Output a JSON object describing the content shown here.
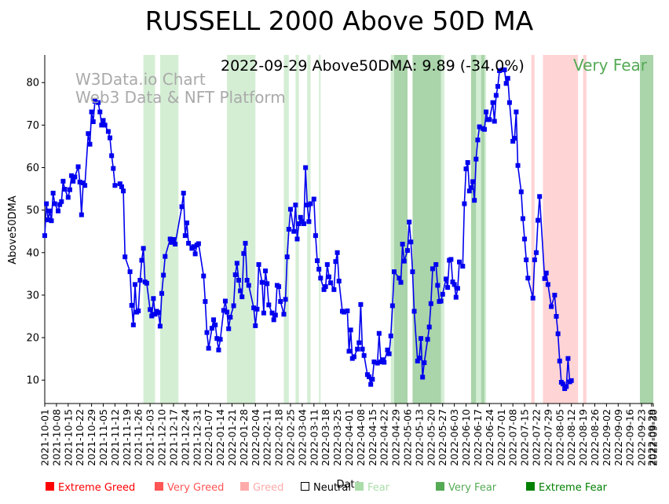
{
  "chart_data": {
    "type": "line",
    "title": "RUSSELL 2000 Above 50D MA",
    "annotation": "2022-09-29 Above50DMA: 9.89 (-34.0%)",
    "annotation_status": "Very Fear",
    "xlabel": "Date",
    "ylabel": "Above50DMA",
    "watermark": [
      "W3Data.io Chart",
      "Web3 Data & NFT Platform"
    ],
    "x_range": [
      "2021-10-01",
      "2022-09-30"
    ],
    "ylim": [
      4.5,
      86.5
    ],
    "yticks": [
      "10",
      "20",
      "30",
      "40",
      "50",
      "60",
      "70",
      "80"
    ],
    "xticks": [
      "2021-10-01",
      "2021-10-08",
      "2021-10-15",
      "2021-10-22",
      "2021-10-29",
      "2021-11-05",
      "2021-11-12",
      "2021-11-19",
      "2021-11-26",
      "2021-12-03",
      "2021-12-10",
      "2021-12-17",
      "2021-12-24",
      "2021-12-31",
      "2022-01-07",
      "2022-01-14",
      "2022-01-21",
      "2022-01-28",
      "2022-02-04",
      "2022-02-11",
      "2022-02-18",
      "2022-02-25",
      "2022-03-04",
      "2022-03-11",
      "2022-03-18",
      "2022-03-25",
      "2022-04-01",
      "2022-04-08",
      "2022-04-15",
      "2022-04-22",
      "2022-04-29",
      "2022-05-06",
      "2022-05-13",
      "2022-05-20",
      "2022-05-27",
      "2022-06-03",
      "2022-06-10",
      "2022-06-17",
      "2022-06-24",
      "2022-07-01",
      "2022-07-08",
      "2022-07-15",
      "2022-07-22",
      "2022-07-29",
      "2022-08-05",
      "2022-08-12",
      "2022-08-19",
      "2022-08-26",
      "2022-09-02",
      "2022-09-09",
      "2022-09-16",
      "2022-09-23",
      "2022-09-29",
      "2022-09-30"
    ],
    "line_color": "#0000ee",
    "legend": [
      {
        "label": "Extreme Greed",
        "color": "#ff0000"
      },
      {
        "label": "Very Greed",
        "color": "#ff5555"
      },
      {
        "label": "Greed",
        "color": "#ffaaaa"
      },
      {
        "label": "Neutral",
        "color": "#000000",
        "hollow": true
      },
      {
        "label": "Fear",
        "color": "#aaddaa"
      },
      {
        "label": "Very Fear",
        "color": "#55aa55"
      },
      {
        "label": "Extreme Fear",
        "color": "#008000"
      }
    ],
    "legend_position": "bottom",
    "bands": [
      {
        "start": "2021-11-29",
        "end": "2021-12-06",
        "zone": "Fear"
      },
      {
        "start": "2021-12-09",
        "end": "2021-12-20",
        "zone": "Fear"
      },
      {
        "start": "2022-01-18",
        "end": "2022-02-04",
        "zone": "Fear"
      },
      {
        "start": "2022-02-21",
        "end": "2022-02-24",
        "zone": "Fear"
      },
      {
        "start": "2022-02-28",
        "end": "2022-03-02",
        "zone": "Fear"
      },
      {
        "start": "2022-03-07",
        "end": "2022-03-09",
        "zone": "Fear"
      },
      {
        "start": "2022-03-14",
        "end": "2022-03-15",
        "zone": "Fear"
      },
      {
        "start": "2022-04-26",
        "end": "2022-04-28",
        "zone": "Fear"
      },
      {
        "start": "2022-04-28",
        "end": "2022-05-06",
        "zone": "Very Fear"
      },
      {
        "start": "2022-05-09",
        "end": "2022-05-26",
        "zone": "Very Fear"
      },
      {
        "start": "2022-05-26",
        "end": "2022-05-28",
        "zone": "Fear"
      },
      {
        "start": "2022-06-13",
        "end": "2022-06-16",
        "zone": "Very Fear"
      },
      {
        "start": "2022-06-16",
        "end": "2022-06-19",
        "zone": "Fear"
      },
      {
        "start": "2022-06-19",
        "end": "2022-06-21",
        "zone": "Very Fear"
      },
      {
        "start": "2022-06-21",
        "end": "2022-06-22",
        "zone": "Fear"
      },
      {
        "start": "2022-07-19",
        "end": "2022-07-21",
        "zone": "Greed"
      },
      {
        "start": "2022-07-26",
        "end": "2022-08-16",
        "zone": "Greed"
      },
      {
        "start": "2022-08-19",
        "end": "2022-08-21",
        "zone": "Greed"
      },
      {
        "start": "2022-09-22",
        "end": "2022-09-30",
        "zone": "Very Fear"
      }
    ],
    "points": [
      [
        "2021-10-01",
        44.0
      ],
      [
        "2021-10-02",
        51.5
      ],
      [
        "2021-10-03",
        47.7
      ],
      [
        "2021-10-04",
        49.8
      ],
      [
        "2021-10-05",
        47.5
      ],
      [
        "2021-10-06",
        54.0
      ],
      [
        "2021-10-07",
        51.5
      ],
      [
        "2021-10-09",
        49.8
      ],
      [
        "2021-10-10",
        51.3
      ],
      [
        "2021-10-11",
        52.0
      ],
      [
        "2021-10-12",
        56.8
      ],
      [
        "2021-10-13",
        54.9
      ],
      [
        "2021-10-15",
        53.0
      ],
      [
        "2021-10-16",
        54.8
      ],
      [
        "2021-10-17",
        58.1
      ],
      [
        "2021-10-18",
        56.8
      ],
      [
        "2021-10-19",
        57.8
      ],
      [
        "2021-10-21",
        60.2
      ],
      [
        "2021-10-22",
        56.6
      ],
      [
        "2021-10-23",
        48.9
      ],
      [
        "2021-10-24",
        56.4
      ],
      [
        "2021-10-25",
        55.8
      ],
      [
        "2021-10-27",
        68.0
      ],
      [
        "2021-10-28",
        65.5
      ],
      [
        "2021-10-29",
        73.1
      ],
      [
        "2021-10-30",
        70.8
      ],
      [
        "2021-10-31",
        75.6
      ],
      [
        "2021-11-02",
        75.3
      ],
      [
        "2021-11-03",
        73.1
      ],
      [
        "2021-11-04",
        70.0
      ],
      [
        "2021-11-05",
        71.1
      ],
      [
        "2021-11-06",
        70.0
      ],
      [
        "2021-11-08",
        68.5
      ],
      [
        "2021-11-09",
        67.0
      ],
      [
        "2021-11-10",
        62.8
      ],
      [
        "2021-11-11",
        59.8
      ],
      [
        "2021-11-12",
        55.8
      ],
      [
        "2021-11-15",
        56.2
      ],
      [
        "2021-11-16",
        55.5
      ],
      [
        "2021-11-17",
        54.5
      ],
      [
        "2021-11-18",
        39.0
      ],
      [
        "2021-11-21",
        35.5
      ],
      [
        "2021-11-22",
        27.6
      ],
      [
        "2021-11-23",
        23.0
      ],
      [
        "2021-11-24",
        32.5
      ],
      [
        "2021-11-25",
        26.0
      ],
      [
        "2021-11-26",
        26.3
      ],
      [
        "2021-11-27",
        33.5
      ],
      [
        "2021-11-28",
        38.2
      ],
      [
        "2021-11-29",
        41.0
      ],
      [
        "2021-11-30",
        33.1
      ],
      [
        "2021-12-01",
        32.8
      ],
      [
        "2021-12-03",
        26.6
      ],
      [
        "2021-12-04",
        25.1
      ],
      [
        "2021-12-05",
        29.2
      ],
      [
        "2021-12-06",
        25.5
      ],
      [
        "2021-12-07",
        26.2
      ],
      [
        "2021-12-08",
        25.9
      ],
      [
        "2021-12-09",
        22.7
      ],
      [
        "2021-12-10",
        30.4
      ],
      [
        "2021-12-11",
        34.7
      ],
      [
        "2021-12-12",
        39.1
      ],
      [
        "2021-12-15",
        43.2
      ],
      [
        "2021-12-16",
        42.4
      ],
      [
        "2021-12-17",
        43.1
      ],
      [
        "2021-12-18",
        42.0
      ],
      [
        "2021-12-22",
        50.8
      ],
      [
        "2021-12-23",
        54.0
      ],
      [
        "2021-12-24",
        44.0
      ],
      [
        "2021-12-25",
        47.0
      ],
      [
        "2021-12-26",
        42.2
      ],
      [
        "2021-12-28",
        41.0
      ],
      [
        "2021-12-29",
        41.4
      ],
      [
        "2021-12-30",
        39.7
      ],
      [
        "2021-12-31",
        41.8
      ],
      [
        "2022-01-01",
        42.1
      ],
      [
        "2022-01-04",
        34.5
      ],
      [
        "2022-01-05",
        28.5
      ],
      [
        "2022-01-06",
        21.2
      ],
      [
        "2022-01-07",
        17.5
      ],
      [
        "2022-01-09",
        22.2
      ],
      [
        "2022-01-10",
        24.2
      ],
      [
        "2022-01-11",
        23.0
      ],
      [
        "2022-01-12",
        19.8
      ],
      [
        "2022-01-13",
        17.1
      ],
      [
        "2022-01-14",
        19.6
      ],
      [
        "2022-01-16",
        26.4
      ],
      [
        "2022-01-17",
        28.6
      ],
      [
        "2022-01-18",
        26.0
      ],
      [
        "2022-01-19",
        22.1
      ],
      [
        "2022-01-20",
        24.8
      ],
      [
        "2022-01-22",
        27.5
      ],
      [
        "2022-01-23",
        34.8
      ],
      [
        "2022-01-24",
        37.5
      ],
      [
        "2022-01-25",
        33.5
      ],
      [
        "2022-01-26",
        31.0
      ],
      [
        "2022-01-27",
        29.6
      ],
      [
        "2022-01-28",
        39.8
      ],
      [
        "2022-01-29",
        42.2
      ],
      [
        "2022-01-30",
        33.5
      ],
      [
        "2022-01-31",
        32.3
      ],
      [
        "2022-02-03",
        27.0
      ],
      [
        "2022-02-04",
        22.8
      ],
      [
        "2022-02-05",
        26.7
      ],
      [
        "2022-02-06",
        37.2
      ],
      [
        "2022-02-08",
        33.0
      ],
      [
        "2022-02-09",
        25.8
      ],
      [
        "2022-02-10",
        35.7
      ],
      [
        "2022-02-11",
        32.7
      ],
      [
        "2022-02-12",
        27.7
      ],
      [
        "2022-02-14",
        25.8
      ],
      [
        "2022-02-15",
        24.2
      ],
      [
        "2022-02-16",
        25.3
      ],
      [
        "2022-02-17",
        32.3
      ],
      [
        "2022-02-18",
        32.0
      ],
      [
        "2022-02-19",
        28.5
      ],
      [
        "2022-02-21",
        25.5
      ],
      [
        "2022-02-22",
        29.0
      ],
      [
        "2022-02-23",
        39.0
      ],
      [
        "2022-02-24",
        45.5
      ],
      [
        "2022-02-25",
        50.2
      ],
      [
        "2022-02-27",
        45.0
      ],
      [
        "2022-02-28",
        51.2
      ],
      [
        "2022-03-01",
        43.2
      ],
      [
        "2022-03-02",
        46.8
      ],
      [
        "2022-03-03",
        48.3
      ],
      [
        "2022-03-04",
        47.3
      ],
      [
        "2022-03-05",
        46.8
      ],
      [
        "2022-03-06",
        60.0
      ],
      [
        "2022-03-07",
        51.2
      ],
      [
        "2022-03-08",
        47.3
      ],
      [
        "2022-03-09",
        51.5
      ],
      [
        "2022-03-11",
        52.6
      ],
      [
        "2022-03-12",
        44.0
      ],
      [
        "2022-03-13",
        38.1
      ],
      [
        "2022-03-14",
        36.1
      ],
      [
        "2022-03-15",
        34.0
      ],
      [
        "2022-03-17",
        31.3
      ],
      [
        "2022-03-18",
        32.0
      ],
      [
        "2022-03-19",
        37.2
      ],
      [
        "2022-03-20",
        34.3
      ],
      [
        "2022-03-21",
        32.9
      ],
      [
        "2022-03-23",
        31.3
      ],
      [
        "2022-03-24",
        37.9
      ],
      [
        "2022-03-25",
        40.0
      ],
      [
        "2022-03-26",
        33.3
      ],
      [
        "2022-03-28",
        26.2
      ],
      [
        "2022-03-29",
        26.0
      ],
      [
        "2022-03-31",
        26.3
      ],
      [
        "2022-04-01",
        16.8
      ],
      [
        "2022-04-02",
        21.8
      ],
      [
        "2022-04-03",
        15.1
      ],
      [
        "2022-04-04",
        15.5
      ],
      [
        "2022-04-06",
        17.3
      ],
      [
        "2022-04-07",
        18.8
      ],
      [
        "2022-04-08",
        27.8
      ],
      [
        "2022-04-09",
        17.3
      ],
      [
        "2022-04-10",
        15.8
      ],
      [
        "2022-04-12",
        11.3
      ],
      [
        "2022-04-13",
        10.8
      ],
      [
        "2022-04-14",
        9.0
      ],
      [
        "2022-04-15",
        10.2
      ],
      [
        "2022-04-16",
        14.3
      ],
      [
        "2022-04-18",
        14.0
      ],
      [
        "2022-04-19",
        21.0
      ],
      [
        "2022-04-20",
        14.3
      ],
      [
        "2022-04-21",
        14.8
      ],
      [
        "2022-04-22",
        14.2
      ],
      [
        "2022-04-24",
        17.1
      ],
      [
        "2022-04-25",
        16.2
      ],
      [
        "2022-04-26",
        20.4
      ],
      [
        "2022-04-27",
        27.5
      ],
      [
        "2022-04-28",
        35.5
      ],
      [
        "2022-05-01",
        34.0
      ],
      [
        "2022-05-02",
        33.0
      ],
      [
        "2022-05-03",
        42.0
      ],
      [
        "2022-05-04",
        38.0
      ],
      [
        "2022-05-06",
        40.5
      ],
      [
        "2022-05-07",
        47.2
      ],
      [
        "2022-05-08",
        42.5
      ],
      [
        "2022-05-09",
        35.5
      ],
      [
        "2022-05-10",
        26.2
      ],
      [
        "2022-05-12",
        14.5
      ],
      [
        "2022-05-13",
        15.2
      ],
      [
        "2022-05-14",
        19.8
      ],
      [
        "2022-05-15",
        10.7
      ],
      [
        "2022-05-16",
        14.1
      ],
      [
        "2022-05-18",
        19.6
      ],
      [
        "2022-05-19",
        22.5
      ],
      [
        "2022-05-20",
        28.0
      ],
      [
        "2022-05-21",
        36.2
      ],
      [
        "2022-05-23",
        37.2
      ],
      [
        "2022-05-24",
        32.3
      ],
      [
        "2022-05-25",
        28.5
      ],
      [
        "2022-05-26",
        28.6
      ],
      [
        "2022-05-27",
        30.2
      ],
      [
        "2022-05-29",
        33.8
      ],
      [
        "2022-05-30",
        31.8
      ],
      [
        "2022-05-31",
        38.2
      ],
      [
        "2022-06-01",
        38.4
      ],
      [
        "2022-06-02",
        33.1
      ],
      [
        "2022-06-03",
        32.5
      ],
      [
        "2022-06-04",
        29.5
      ],
      [
        "2022-06-05",
        31.6
      ],
      [
        "2022-06-06",
        37.8
      ],
      [
        "2022-06-08",
        36.8
      ],
      [
        "2022-06-09",
        51.5
      ],
      [
        "2022-06-10",
        59.7
      ],
      [
        "2022-06-11",
        61.2
      ],
      [
        "2022-06-12",
        54.5
      ],
      [
        "2022-06-13",
        55.3
      ],
      [
        "2022-06-14",
        56.7
      ],
      [
        "2022-06-15",
        52.3
      ],
      [
        "2022-06-16",
        62.0
      ],
      [
        "2022-06-17",
        66.5
      ],
      [
        "2022-06-18",
        69.6
      ],
      [
        "2022-06-20",
        69.2
      ],
      [
        "2022-06-21",
        69.0
      ],
      [
        "2022-06-22",
        73.1
      ],
      [
        "2022-06-23",
        71.3
      ],
      [
        "2022-06-24",
        71.3
      ],
      [
        "2022-06-26",
        75.3
      ],
      [
        "2022-06-27",
        70.9
      ],
      [
        "2022-06-28",
        77.0
      ],
      [
        "2022-06-29",
        79.1
      ],
      [
        "2022-06-30",
        82.8
      ],
      [
        "2022-07-02",
        83.0
      ],
      [
        "2022-07-03",
        83.0
      ],
      [
        "2022-07-04",
        79.8
      ],
      [
        "2022-07-05",
        81.0
      ],
      [
        "2022-07-06",
        75.3
      ],
      [
        "2022-07-08",
        66.2
      ],
      [
        "2022-07-09",
        66.9
      ],
      [
        "2022-07-10",
        73.1
      ],
      [
        "2022-07-11",
        60.5
      ],
      [
        "2022-07-13",
        54.3
      ],
      [
        "2022-07-14",
        48.0
      ],
      [
        "2022-07-15",
        43.2
      ],
      [
        "2022-07-16",
        38.3
      ],
      [
        "2022-07-17",
        34.0
      ],
      [
        "2022-07-20",
        29.3
      ],
      [
        "2022-07-21",
        38.3
      ],
      [
        "2022-07-22",
        40.0
      ],
      [
        "2022-07-23",
        47.6
      ],
      [
        "2022-07-24",
        53.2
      ],
      [
        "2022-07-27",
        33.9
      ],
      [
        "2022-07-28",
        35.2
      ],
      [
        "2022-07-29",
        32.5
      ],
      [
        "2022-07-31",
        27.3
      ],
      [
        "2022-08-02",
        30.0
      ],
      [
        "2022-08-03",
        25.0
      ],
      [
        "2022-08-04",
        20.9
      ],
      [
        "2022-08-05",
        14.5
      ],
      [
        "2022-08-06",
        9.5
      ],
      [
        "2022-08-07",
        9.1
      ],
      [
        "2022-08-08",
        8.0
      ],
      [
        "2022-08-09",
        8.5
      ],
      [
        "2022-08-10",
        15.1
      ],
      [
        "2022-08-11",
        9.6
      ],
      [
        "2022-08-12",
        9.9
      ]
    ]
  }
}
